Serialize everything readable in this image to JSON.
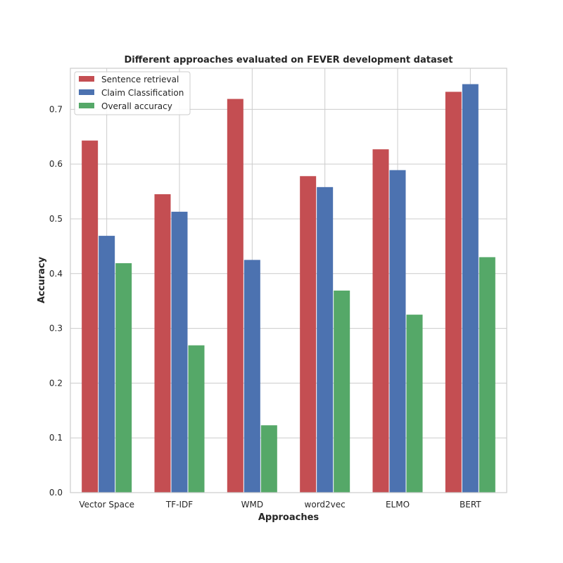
{
  "chart_data": {
    "type": "bar",
    "title": "Different approaches evaluated on FEVER development dataset",
    "xlabel": "Approaches",
    "ylabel": "Accuracy",
    "categories": [
      "Vector Space",
      "TF-IDF",
      "WMD",
      "word2vec",
      "ELMO",
      "BERT"
    ],
    "ylim": [
      0,
      0.775
    ],
    "yticks": [
      0.0,
      0.1,
      0.2,
      0.3,
      0.4,
      0.5,
      0.6,
      0.7
    ],
    "ytick_labels": [
      "0.0",
      "0.1",
      "0.2",
      "0.3",
      "0.4",
      "0.5",
      "0.6",
      "0.7"
    ],
    "grid": true,
    "legend_position": "top-left",
    "series": [
      {
        "name": "Sentence retrieval",
        "color": "#c44e52",
        "values": [
          0.643,
          0.545,
          0.719,
          0.578,
          0.627,
          0.732
        ]
      },
      {
        "name": "Claim Classification",
        "color": "#4c72b0",
        "values": [
          0.469,
          0.513,
          0.425,
          0.558,
          0.589,
          0.746
        ]
      },
      {
        "name": "Overall accuracy",
        "color": "#55a868",
        "values": [
          0.419,
          0.269,
          0.123,
          0.369,
          0.325,
          0.43
        ]
      }
    ]
  }
}
